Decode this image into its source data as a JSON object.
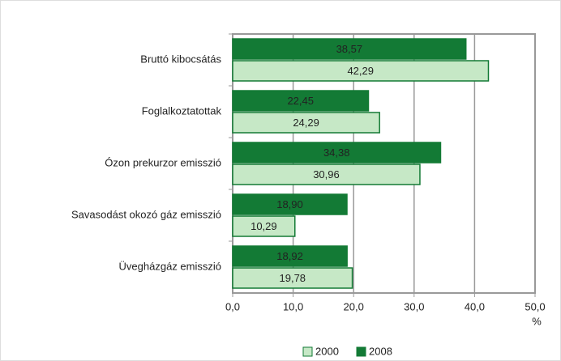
{
  "chart_data": {
    "type": "bar",
    "orientation": "horizontal",
    "categories": [
      "Bruttó kibocsátás",
      "Foglalkoztatottak",
      "Ózon prekurzor emisszió",
      "Savasodást okozó gáz emisszió",
      "Üvegházgáz emisszió"
    ],
    "series": [
      {
        "name": "2000",
        "color": "#c6e8c6",
        "values": [
          42.29,
          24.29,
          30.96,
          10.29,
          19.78
        ],
        "value_labels": [
          "42,29",
          "24,29",
          "30,96",
          "10,29",
          "19,78"
        ]
      },
      {
        "name": "2008",
        "color": "#137a35",
        "values": [
          38.57,
          22.45,
          34.38,
          18.9,
          18.92
        ],
        "value_labels": [
          "38,57",
          "22,45",
          "34,38",
          "18,90",
          "18,92"
        ]
      }
    ],
    "x_label": "%",
    "xlim": [
      0,
      50
    ],
    "xticks": [
      {
        "value": 0,
        "label": "0,0"
      },
      {
        "value": 10,
        "label": "10,0"
      },
      {
        "value": 20,
        "label": "20,0"
      },
      {
        "value": 30,
        "label": "30,0"
      },
      {
        "value": 40,
        "label": "40,0"
      },
      {
        "value": 50,
        "label": "50,0"
      }
    ],
    "grid": true,
    "legend": "bottom"
  }
}
